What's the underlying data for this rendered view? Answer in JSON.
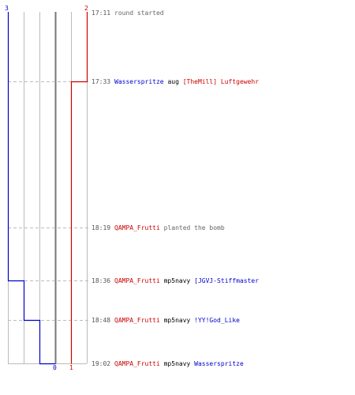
{
  "colors": {
    "team_blue": "#0000cc",
    "team_red": "#cc0000",
    "neutral_text": "#666666",
    "weapon_text": "#000000",
    "grid": "#bbbbbb",
    "axis": "#777777",
    "dashed": "#bbbbbb"
  },
  "axis_labels": {
    "top_left": "3",
    "top_right": "2",
    "bottom_zero": "0",
    "bottom_one": "1"
  },
  "events": [
    {
      "time": "17:11",
      "segments": [
        {
          "text": "round started",
          "style": "neutral"
        }
      ]
    },
    {
      "time": "17:33",
      "segments": [
        {
          "text": "Wasserspritze",
          "style": "blue"
        },
        {
          "text": " aug ",
          "style": "plain"
        },
        {
          "text": "[TheMill] Luftgewehr",
          "style": "red"
        }
      ]
    },
    {
      "time": "18:19",
      "segments": [
        {
          "text": "QAMPA_Frutti",
          "style": "red"
        },
        {
          "text": " planted the bomb",
          "style": "neutral"
        }
      ]
    },
    {
      "time": "18:36",
      "segments": [
        {
          "text": "QAMPA_Frutti",
          "style": "red"
        },
        {
          "text": " mp5navy ",
          "style": "plain"
        },
        {
          "text": "[JGVJ-Stiffmaster",
          "style": "blue"
        }
      ]
    },
    {
      "time": "18:48",
      "segments": [
        {
          "text": "QAMPA_Frutti",
          "style": "red"
        },
        {
          "text": " mp5navy ",
          "style": "plain"
        },
        {
          "text": "!YY!God_Like",
          "style": "blue"
        }
      ]
    },
    {
      "time": "19:02",
      "segments": [
        {
          "text": "QAMPA_Frutti",
          "style": "red"
        },
        {
          "text": " mp5navy ",
          "style": "plain"
        },
        {
          "text": "Wasserspritze",
          "style": "blue"
        }
      ]
    }
  ]
}
